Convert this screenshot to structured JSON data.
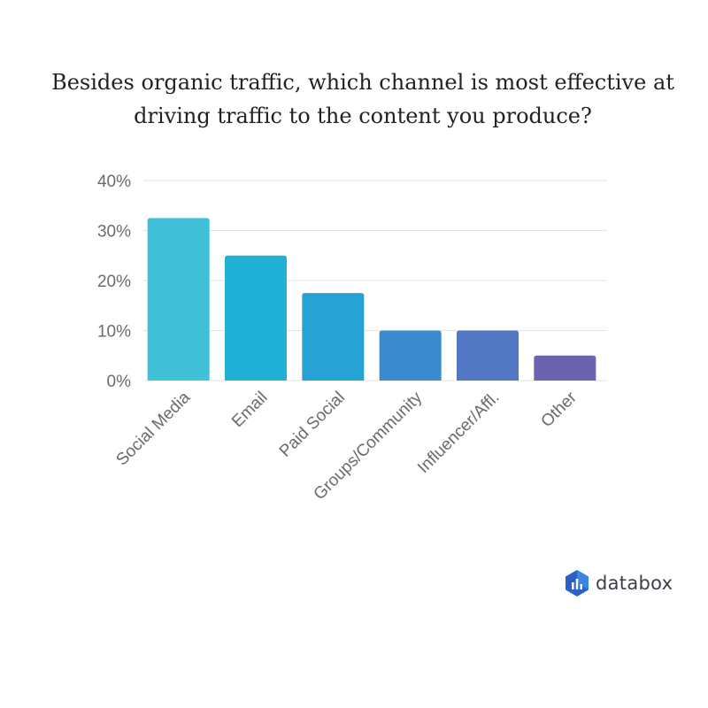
{
  "title": {
    "line1": "Besides organic traffic, which channel is most effective at",
    "line2": "driving traffic to the content you produce?"
  },
  "brand": {
    "name": "databox",
    "icon": "databox-logo-icon"
  },
  "chart_data": {
    "type": "bar",
    "categories": [
      "Social Media",
      "Email",
      "Paid Social",
      "Groups/Community",
      "Influencer/Affl.",
      "Other"
    ],
    "values": [
      32.5,
      25,
      17.5,
      10,
      10,
      5
    ],
    "bar_colors": [
      "#40c1d7",
      "#22b1d6",
      "#27a2d4",
      "#3c8bcf",
      "#5278c4",
      "#6b62b0"
    ],
    "ylim": [
      0,
      40
    ],
    "yticks": [
      0,
      10,
      20,
      30,
      40
    ],
    "ytick_labels": [
      "0%",
      "10%",
      "20%",
      "30%",
      "40%"
    ],
    "grid": true,
    "title": "Besides organic traffic, which channel is most effective at driving traffic to the content you produce?",
    "xlabel": "",
    "ylabel": ""
  }
}
